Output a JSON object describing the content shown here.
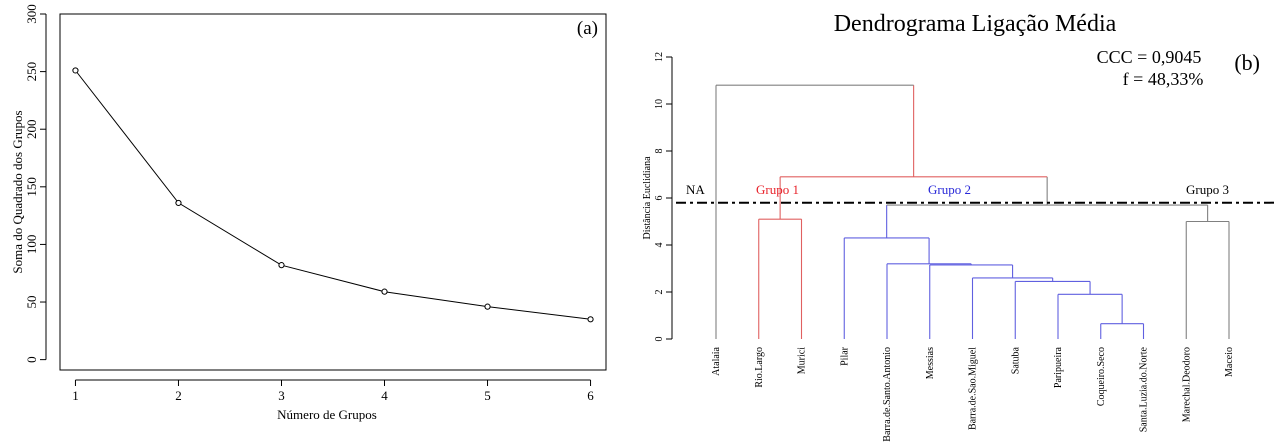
{
  "chart_data": [
    {
      "type": "line",
      "panel_label": "(a)",
      "xlabel": "Número de Grupos",
      "ylabel": "Soma do Quadrado dos Grupos",
      "x": [
        1,
        2,
        3,
        4,
        5,
        6
      ],
      "y": [
        251,
        136,
        82,
        59,
        46,
        35
      ],
      "xlim": [
        0.85,
        6.15
      ],
      "ylim": [
        -9,
        300
      ],
      "xticks": [
        "1",
        "2",
        "3",
        "4",
        "5",
        "6"
      ],
      "yticks": [
        "0",
        "50",
        "100",
        "150",
        "200",
        "250",
        "300"
      ],
      "color": "#000000"
    },
    {
      "type": "dendrogram",
      "title": "Dendrograma Ligação Média",
      "panel_label": "(b)",
      "stats": [
        "CCC = 0,9045",
        "f = 48,33%"
      ],
      "ylabel": "Distância Euclidiana",
      "ylim": [
        0,
        12
      ],
      "yticks": [
        "0",
        "2",
        "4",
        "6",
        "8",
        "10",
        "12"
      ],
      "cut_height": 5.8,
      "leaves": [
        "Atalaia",
        "Rio.Largo",
        "Murici",
        "Pilar",
        "Barra.de.Santo.Antonio",
        "Messias",
        "Barra.de.Sao.Miguel",
        "Satuba",
        "Paripueira",
        "Coqueiro.Seco",
        "Santa.Luzia.do.Norte",
        "Marechal.Deodoro",
        "Maceio"
      ],
      "groups": [
        {
          "label": "NA",
          "color": "#000000"
        },
        {
          "label": "Grupo 1",
          "color": "#e8222a"
        },
        {
          "label": "Grupo 2",
          "color": "#2828d8"
        },
        {
          "label": "Grupo 3",
          "color": "#000000"
        }
      ],
      "merges": [
        {
          "a": "L10",
          "b": "L11",
          "h": 0.65,
          "color": "#6060e0"
        },
        {
          "a": "L9",
          "b": "M0",
          "h": 1.9,
          "color": "#6060e0"
        },
        {
          "a": "L8",
          "b": "M1",
          "h": 2.45,
          "color": "#6060e0"
        },
        {
          "a": "L7",
          "b": "M2",
          "h": 2.6,
          "color": "#6060e0"
        },
        {
          "a": "L6",
          "b": "M3",
          "h": 3.15,
          "color": "#6060e0"
        },
        {
          "a": "L5",
          "b": "M4",
          "h": 3.2,
          "color": "#6060e0"
        },
        {
          "a": "L4",
          "b": "M5",
          "h": 4.3,
          "color": "#6060e0"
        },
        {
          "a": "L2",
          "b": "L3",
          "h": 5.1,
          "color": "#e06060"
        },
        {
          "a": "L12",
          "b": "L13",
          "h": 5.0,
          "color": "#808080"
        },
        {
          "a": "M6",
          "b": "M8",
          "h": 5.7,
          "color": "#808080"
        },
        {
          "a": "M7",
          "b": "M9",
          "h": 6.9,
          "color": "#e06060"
        },
        {
          "a": "L1",
          "b": "M10",
          "h": 10.8,
          "color": "#808080"
        }
      ],
      "leaf_color": [
        "#808080",
        "#e06060",
        "#e06060",
        "#6060e0",
        "#6060e0",
        "#6060e0",
        "#6060e0",
        "#6060e0",
        "#6060e0",
        "#6060e0",
        "#6060e0",
        "#808080",
        "#808080"
      ]
    }
  ]
}
